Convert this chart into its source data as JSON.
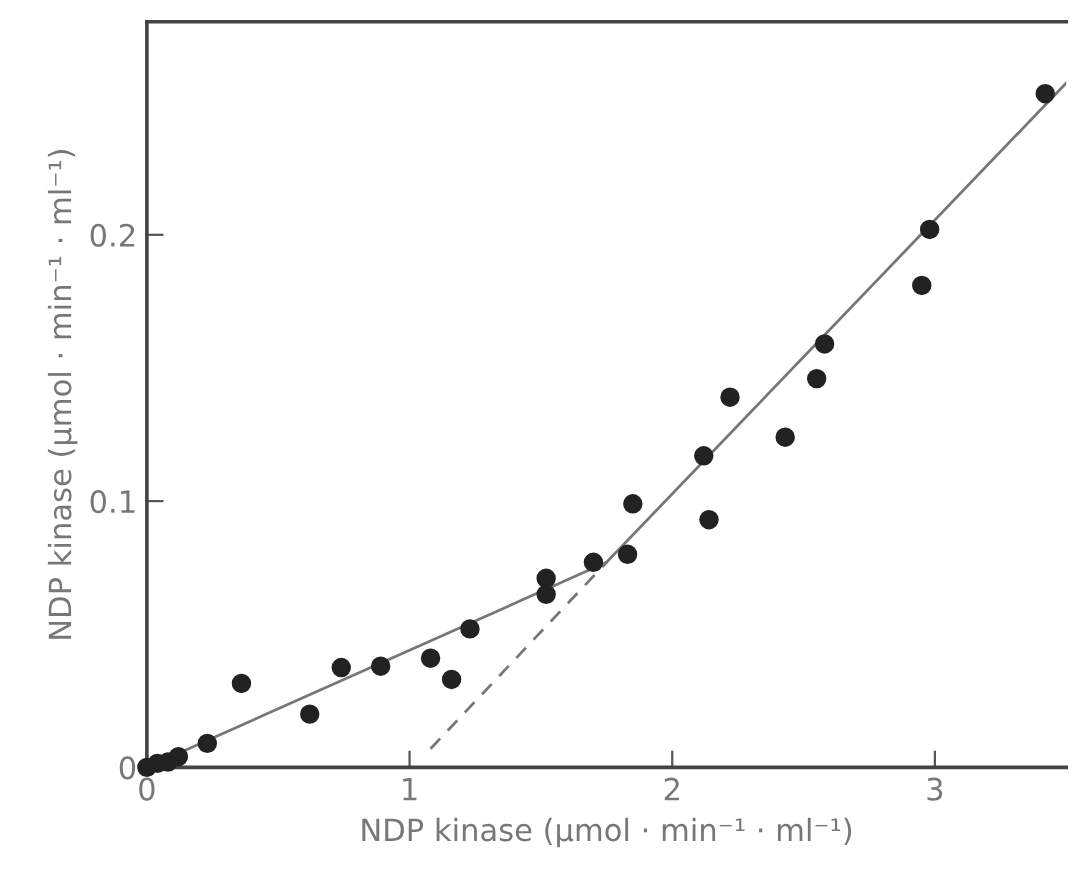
{
  "chart_data": {
    "type": "scatter",
    "xlabel": "NDP kinase (µmol · min⁻¹ · ml⁻¹)",
    "ylabel": "NDP kinase (µmol · min⁻¹ · ml⁻¹)",
    "xlim": [
      0,
      3.5
    ],
    "ylim": [
      0,
      0.28
    ],
    "xticks": [
      0,
      1,
      2,
      3
    ],
    "yticks": [
      0,
      0.1,
      0.2
    ],
    "grid": false,
    "legend": false,
    "series": [
      {
        "marker": "circle",
        "color": "#222222",
        "x": [
          0.0,
          0.04,
          0.08,
          0.12,
          0.23,
          0.36,
          0.62,
          0.74,
          0.89,
          1.08,
          1.16,
          1.23,
          1.52,
          1.52,
          1.7,
          1.83,
          1.85,
          2.12,
          2.14,
          2.22,
          2.43,
          2.55,
          2.58,
          2.95,
          2.98,
          3.42
        ],
        "values": [
          0.0,
          0.0015,
          0.002,
          0.004,
          0.009,
          0.0315,
          0.02,
          0.0375,
          0.038,
          0.041,
          0.033,
          0.052,
          0.071,
          0.065,
          0.077,
          0.08,
          0.099,
          0.117,
          0.093,
          0.139,
          0.124,
          0.146,
          0.159,
          0.181,
          0.202,
          0.253
        ]
      },
      {
        "type": "line",
        "line_style": "solid",
        "color": "#777777",
        "x": [
          0.0,
          1.75,
          3.5
        ],
        "values": [
          0.0,
          0.077,
          0.257
        ]
      },
      {
        "type": "line",
        "line_style": "dashed",
        "color": "#777777",
        "x": [
          1.08,
          1.75
        ],
        "values": [
          0.007,
          0.077
        ]
      }
    ]
  }
}
